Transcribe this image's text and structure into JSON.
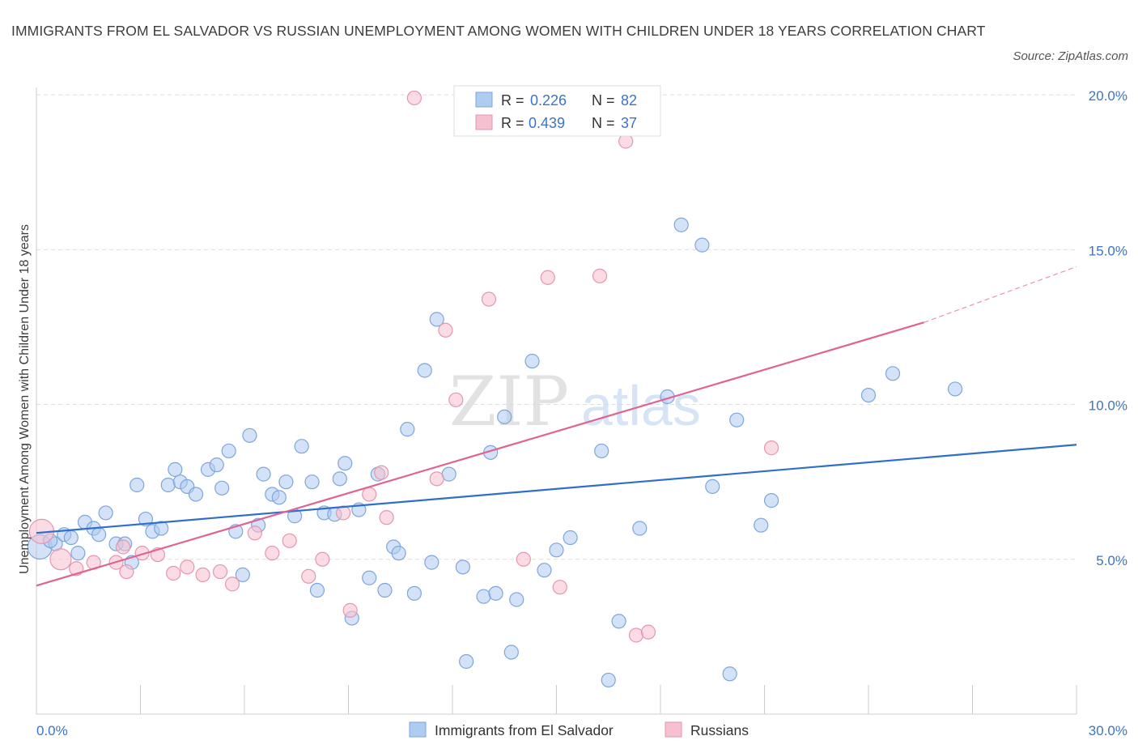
{
  "title": "IMMIGRANTS FROM EL SALVADOR VS RUSSIAN UNEMPLOYMENT AMONG WOMEN WITH CHILDREN UNDER 18 YEARS CORRELATION CHART",
  "source": "Source: ZipAtlas.com",
  "watermark": {
    "zip": "ZIP",
    "atlas": "atlas"
  },
  "colors": {
    "blue_fill": "#aecbf0",
    "blue_stroke": "#7ea6dc",
    "blue_line": "#2f6fcb",
    "pink_fill": "#f7c0d0",
    "pink_stroke": "#e596ae",
    "pink_line": "#e06491",
    "tick_text": "#3b74c7",
    "grid": "#dddddd"
  },
  "legend": {
    "r_label": "R =",
    "n_label": "N =",
    "items": [
      {
        "r": "0.226",
        "n": "82"
      },
      {
        "r": "0.439",
        "n": "37"
      }
    ]
  },
  "chart_data": {
    "type": "scatter",
    "title": "IMMIGRANTS FROM EL SALVADOR VS RUSSIAN UNEMPLOYMENT AMONG WOMEN WITH CHILDREN UNDER 18 YEARS CORRELATION CHART",
    "xlabel": "",
    "ylabel": "Unemployment Among Women with Children Under 18 years",
    "xlim": [
      0,
      30
    ],
    "ylim": [
      0,
      20.5
    ],
    "x_tick_labels": [
      "0.0%",
      "30.0%"
    ],
    "y_ticks": [
      5,
      10,
      15,
      20
    ],
    "y_tick_labels": [
      "5.0%",
      "10.0%",
      "15.0%",
      "20.0%"
    ],
    "grid": true,
    "legend_position": "top-center",
    "series": [
      {
        "name": "Immigrants from El Salvador",
        "r": 0.226,
        "n": 82,
        "trend": {
          "x": [
            0,
            30
          ],
          "y": [
            5.85,
            8.7
          ]
        },
        "points": [
          {
            "x": 0.1,
            "y": 5.4,
            "big": true
          },
          {
            "x": 0.55,
            "y": 5.5
          },
          {
            "x": 0.8,
            "y": 5.8
          },
          {
            "x": 1.0,
            "y": 5.7
          },
          {
            "x": 1.2,
            "y": 5.2
          },
          {
            "x": 1.4,
            "y": 6.2
          },
          {
            "x": 1.65,
            "y": 6.0
          },
          {
            "x": 1.8,
            "y": 5.8
          },
          {
            "x": 2.0,
            "y": 6.5
          },
          {
            "x": 2.3,
            "y": 5.5
          },
          {
            "x": 2.55,
            "y": 5.5
          },
          {
            "x": 2.75,
            "y": 4.9
          },
          {
            "x": 2.9,
            "y": 7.4
          },
          {
            "x": 3.15,
            "y": 6.3
          },
          {
            "x": 3.35,
            "y": 5.9
          },
          {
            "x": 3.6,
            "y": 6.0
          },
          {
            "x": 3.8,
            "y": 7.4
          },
          {
            "x": 4.0,
            "y": 7.9
          },
          {
            "x": 4.15,
            "y": 7.5
          },
          {
            "x": 4.35,
            "y": 7.35
          },
          {
            "x": 4.6,
            "y": 7.1
          },
          {
            "x": 4.95,
            "y": 7.9
          },
          {
            "x": 5.2,
            "y": 8.05
          },
          {
            "x": 5.35,
            "y": 7.3
          },
          {
            "x": 5.55,
            "y": 8.5
          },
          {
            "x": 5.75,
            "y": 5.9
          },
          {
            "x": 5.95,
            "y": 4.5
          },
          {
            "x": 6.15,
            "y": 9.0
          },
          {
            "x": 6.4,
            "y": 6.1
          },
          {
            "x": 6.55,
            "y": 7.75
          },
          {
            "x": 6.8,
            "y": 7.1
          },
          {
            "x": 7.0,
            "y": 7.0
          },
          {
            "x": 7.2,
            "y": 7.5
          },
          {
            "x": 7.45,
            "y": 6.4
          },
          {
            "x": 7.65,
            "y": 8.65
          },
          {
            "x": 7.95,
            "y": 7.5
          },
          {
            "x": 8.1,
            "y": 4.0
          },
          {
            "x": 8.3,
            "y": 6.5
          },
          {
            "x": 8.6,
            "y": 6.45
          },
          {
            "x": 8.75,
            "y": 7.6
          },
          {
            "x": 8.9,
            "y": 8.1
          },
          {
            "x": 9.1,
            "y": 3.1
          },
          {
            "x": 9.3,
            "y": 6.6
          },
          {
            "x": 9.6,
            "y": 4.4
          },
          {
            "x": 9.85,
            "y": 7.75
          },
          {
            "x": 10.05,
            "y": 4.0
          },
          {
            "x": 10.3,
            "y": 5.4
          },
          {
            "x": 10.45,
            "y": 5.2
          },
          {
            "x": 10.7,
            "y": 9.2
          },
          {
            "x": 10.9,
            "y": 3.9
          },
          {
            "x": 11.2,
            "y": 11.1
          },
          {
            "x": 11.4,
            "y": 4.9
          },
          {
            "x": 11.55,
            "y": 12.75
          },
          {
            "x": 11.9,
            "y": 7.75
          },
          {
            "x": 12.3,
            "y": 4.75
          },
          {
            "x": 12.4,
            "y": 1.7
          },
          {
            "x": 12.9,
            "y": 3.8
          },
          {
            "x": 13.1,
            "y": 8.45
          },
          {
            "x": 13.25,
            "y": 3.9
          },
          {
            "x": 13.5,
            "y": 9.6
          },
          {
            "x": 13.7,
            "y": 2.0
          },
          {
            "x": 13.85,
            "y": 3.7
          },
          {
            "x": 14.3,
            "y": 11.4
          },
          {
            "x": 14.65,
            "y": 4.65
          },
          {
            "x": 15.0,
            "y": 5.3
          },
          {
            "x": 15.4,
            "y": 5.7
          },
          {
            "x": 16.3,
            "y": 8.5
          },
          {
            "x": 16.5,
            "y": 1.1
          },
          {
            "x": 16.8,
            "y": 3.0
          },
          {
            "x": 17.4,
            "y": 6.0
          },
          {
            "x": 18.2,
            "y": 10.25
          },
          {
            "x": 18.6,
            "y": 15.8
          },
          {
            "x": 19.2,
            "y": 15.15
          },
          {
            "x": 19.5,
            "y": 7.35
          },
          {
            "x": 20.0,
            "y": 1.3
          },
          {
            "x": 20.2,
            "y": 9.5
          },
          {
            "x": 20.9,
            "y": 6.1
          },
          {
            "x": 21.2,
            "y": 6.9
          },
          {
            "x": 24.0,
            "y": 10.3
          },
          {
            "x": 24.7,
            "y": 11.0
          },
          {
            "x": 26.5,
            "y": 10.5
          },
          {
            "x": 0.4,
            "y": 5.6
          }
        ]
      },
      {
        "name": "Russians",
        "r": 0.439,
        "n": 37,
        "trend": {
          "x": [
            0,
            25.6
          ],
          "y": [
            4.15,
            12.65
          ]
        },
        "trend_dashed": {
          "x": [
            25.6,
            30
          ],
          "y": [
            12.65,
            14.45
          ]
        },
        "points": [
          {
            "x": 0.15,
            "y": 5.9,
            "big": true
          },
          {
            "x": 0.7,
            "y": 5.0,
            "big2": true
          },
          {
            "x": 1.15,
            "y": 4.7
          },
          {
            "x": 1.65,
            "y": 4.9
          },
          {
            "x": 2.3,
            "y": 4.9
          },
          {
            "x": 2.5,
            "y": 5.4
          },
          {
            "x": 2.6,
            "y": 4.6
          },
          {
            "x": 3.05,
            "y": 5.2
          },
          {
            "x": 3.5,
            "y": 5.15
          },
          {
            "x": 3.95,
            "y": 4.55
          },
          {
            "x": 4.35,
            "y": 4.75
          },
          {
            "x": 4.8,
            "y": 4.5
          },
          {
            "x": 5.3,
            "y": 4.6
          },
          {
            "x": 5.65,
            "y": 4.2
          },
          {
            "x": 6.3,
            "y": 5.85
          },
          {
            "x": 6.8,
            "y": 5.2
          },
          {
            "x": 7.3,
            "y": 5.6
          },
          {
            "x": 7.85,
            "y": 4.45
          },
          {
            "x": 8.25,
            "y": 5.0
          },
          {
            "x": 8.85,
            "y": 6.5
          },
          {
            "x": 9.05,
            "y": 3.35
          },
          {
            "x": 9.6,
            "y": 7.1
          },
          {
            "x": 9.95,
            "y": 7.8
          },
          {
            "x": 10.1,
            "y": 6.35
          },
          {
            "x": 10.9,
            "y": 19.9
          },
          {
            "x": 11.55,
            "y": 7.6
          },
          {
            "x": 11.8,
            "y": 12.4
          },
          {
            "x": 12.1,
            "y": 10.15
          },
          {
            "x": 13.05,
            "y": 13.4
          },
          {
            "x": 14.05,
            "y": 5.0
          },
          {
            "x": 14.75,
            "y": 14.1
          },
          {
            "x": 15.1,
            "y": 4.1
          },
          {
            "x": 16.25,
            "y": 14.15
          },
          {
            "x": 17.0,
            "y": 18.5
          },
          {
            "x": 17.3,
            "y": 2.55
          },
          {
            "x": 17.65,
            "y": 2.65
          },
          {
            "x": 21.2,
            "y": 8.6
          }
        ]
      }
    ]
  },
  "bottom_legend": [
    "Immigrants from El Salvador",
    "Russians"
  ]
}
